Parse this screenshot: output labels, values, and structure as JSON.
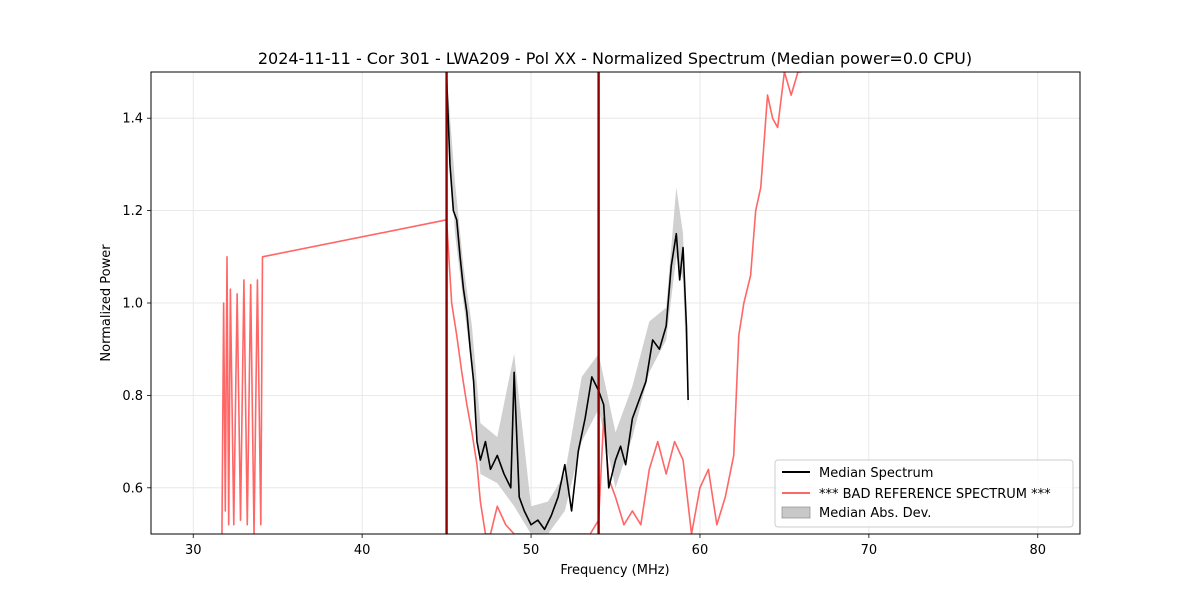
{
  "chart_data": {
    "type": "line",
    "title": "2024-11-11 - Cor 301 - LWA209 - Pol XX - Normalized Spectrum (Median power=0.0 CPU)",
    "xlabel": "Frequency (MHz)",
    "ylabel": "Normalized Power",
    "xlim": [
      27.5,
      82.5
    ],
    "ylim": [
      0.5,
      1.5
    ],
    "xticks": [
      30,
      40,
      50,
      60,
      70,
      80
    ],
    "xtick_labels": [
      "30",
      "40",
      "50",
      "60",
      "70",
      "80"
    ],
    "yticks": [
      0.6,
      0.8,
      1.0,
      1.2,
      1.4
    ],
    "ytick_labels": [
      "0.6",
      "0.8",
      "1.0",
      "1.2",
      "1.4"
    ],
    "grid": true,
    "legend_position": "bottom-right",
    "series": [
      {
        "name": "Median Spectrum",
        "color": "#000000",
        "x": [
          45.0,
          45.2,
          45.4,
          45.6,
          45.8,
          46.0,
          46.2,
          46.4,
          46.6,
          46.8,
          47.0,
          47.3,
          47.6,
          48.0,
          48.4,
          48.8,
          49.0,
          49.3,
          49.6,
          50.0,
          50.4,
          50.8,
          51.2,
          51.6,
          52.0,
          52.4,
          52.8,
          53.2,
          53.6,
          54.0,
          54.3,
          54.6,
          55.0,
          55.3,
          55.6,
          56.0,
          56.4,
          56.8,
          57.2,
          57.6,
          58.0,
          58.3,
          58.6,
          58.8,
          59.0,
          59.2,
          59.3
        ],
        "y": [
          1.49,
          1.3,
          1.2,
          1.18,
          1.1,
          1.03,
          0.98,
          0.9,
          0.83,
          0.7,
          0.66,
          0.7,
          0.64,
          0.67,
          0.63,
          0.6,
          0.85,
          0.58,
          0.55,
          0.52,
          0.53,
          0.51,
          0.54,
          0.58,
          0.65,
          0.55,
          0.68,
          0.75,
          0.84,
          0.81,
          0.78,
          0.6,
          0.66,
          0.69,
          0.65,
          0.75,
          0.79,
          0.83,
          0.92,
          0.9,
          0.95,
          1.08,
          1.15,
          1.05,
          1.12,
          0.95,
          0.79
        ]
      },
      {
        "name": "*** BAD REFERENCE SPECTRUM ***",
        "color": "#ff6666",
        "x": [
          31.7,
          31.8,
          31.9,
          32.0,
          32.1,
          32.2,
          32.4,
          32.6,
          32.8,
          33.0,
          33.2,
          33.4,
          33.6,
          33.8,
          34.0,
          34.1,
          45.0,
          45.3,
          45.6,
          45.9,
          46.2,
          46.5,
          46.8,
          47.0,
          47.3,
          47.6,
          48.0,
          48.5,
          49.0,
          49.5,
          50.0,
          51.0,
          52.0,
          53.0,
          53.5,
          54.0,
          54.3,
          54.6,
          55.0,
          55.5,
          56.0,
          56.5,
          57.0,
          57.5,
          58.0,
          58.5,
          59.0,
          59.5,
          60.0,
          60.5,
          61.0,
          61.5,
          62.0,
          62.3,
          62.6,
          63.0,
          63.3,
          63.6,
          64.0,
          64.3,
          64.6,
          65.0,
          65.4,
          65.8,
          66.0
        ],
        "y": [
          0.5,
          1.0,
          0.55,
          1.1,
          0.52,
          1.03,
          0.52,
          1.02,
          0.53,
          1.05,
          0.52,
          1.04,
          0.5,
          1.05,
          0.52,
          1.1,
          1.18,
          1.0,
          0.93,
          0.85,
          0.78,
          0.72,
          0.65,
          0.57,
          0.48,
          0.5,
          0.56,
          0.52,
          0.5,
          0.5,
          0.5,
          0.5,
          0.5,
          0.5,
          0.5,
          0.53,
          0.75,
          0.62,
          0.58,
          0.52,
          0.55,
          0.52,
          0.64,
          0.7,
          0.63,
          0.7,
          0.66,
          0.5,
          0.6,
          0.64,
          0.52,
          0.58,
          0.67,
          0.93,
          1.0,
          1.06,
          1.2,
          1.25,
          1.45,
          1.4,
          1.38,
          1.5,
          1.45,
          1.5,
          1.5
        ]
      },
      {
        "name": "Median Abs. Dev.",
        "color": "#c8c8c8",
        "type": "band",
        "x": [
          45.0,
          45.5,
          46.0,
          46.5,
          47.0,
          48.0,
          49.0,
          50.0,
          51.0,
          52.0,
          53.0,
          54.0,
          55.0,
          56.0,
          57.0,
          58.0,
          58.6,
          59.0,
          59.3
        ],
        "y_low": [
          1.45,
          1.15,
          1.0,
          0.86,
          0.63,
          0.61,
          0.56,
          0.5,
          0.5,
          0.55,
          0.7,
          0.77,
          0.6,
          0.71,
          0.85,
          0.92,
          1.1,
          1.05,
          0.77
        ],
        "y_high": [
          1.5,
          1.26,
          1.08,
          0.95,
          0.74,
          0.71,
          0.89,
          0.56,
          0.57,
          0.63,
          0.84,
          0.89,
          0.72,
          0.82,
          0.96,
          0.99,
          1.25,
          1.15,
          0.82
        ]
      }
    ],
    "vertical_lines": [
      {
        "x": 45.0,
        "color": "#8b0000"
      },
      {
        "x": 54.0,
        "color": "#8b0000"
      }
    ]
  }
}
